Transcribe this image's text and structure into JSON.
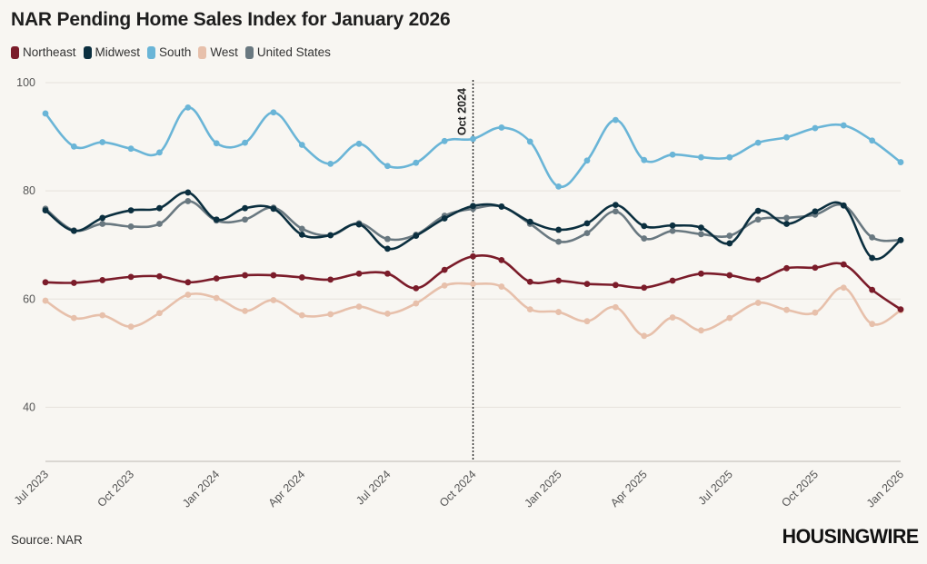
{
  "title": "NAR Pending Home Sales Index for January 2026",
  "source": "Source: NAR",
  "brand": "HOUSINGWIRE",
  "annotation_label": "Oct 2024",
  "chart_data": {
    "type": "line",
    "title": "NAR Pending Home Sales Index for January 2026",
    "xlabel": "",
    "ylabel": "",
    "ylim": [
      30,
      100
    ],
    "yticks": [
      40,
      60,
      80,
      100
    ],
    "grid": true,
    "legend": "top-left",
    "x": [
      "Jul 2023",
      "Aug 2023",
      "Sep 2023",
      "Oct 2023",
      "Nov 2023",
      "Dec 2023",
      "Jan 2024",
      "Feb 2024",
      "Mar 2024",
      "Apr 2024",
      "May 2024",
      "Jun 2024",
      "Jul 2024",
      "Aug 2024",
      "Sep 2024",
      "Oct 2024",
      "Nov 2024",
      "Dec 2024",
      "Jan 2025",
      "Feb 2025",
      "Mar 2025",
      "Apr 2025",
      "May 2025",
      "Jun 2025",
      "Jul 2025",
      "Aug 2025",
      "Sep 2025",
      "Oct 2025",
      "Nov 2025",
      "Dec 2025",
      "Jan 2026"
    ],
    "xtick_labels": [
      "Jul 2023",
      "Oct 2023",
      "Jan 2024",
      "Apr 2024",
      "Jul 2024",
      "Oct 2024",
      "Jan 2025",
      "Apr 2025",
      "Jul 2025",
      "Oct 2025",
      "Jan 2026"
    ],
    "vline": "Oct 2024",
    "series": [
      {
        "name": "Northeast",
        "color": "#7b1c2a",
        "values": [
          63.1,
          63.0,
          63.5,
          64.1,
          64.2,
          63.1,
          63.8,
          64.4,
          64.4,
          64.0,
          63.6,
          64.7,
          64.7,
          62.0,
          65.4,
          67.9,
          67.2,
          63.2,
          63.4,
          62.8,
          62.6,
          62.1,
          63.4,
          64.7,
          64.4,
          63.6,
          65.7,
          65.8,
          66.4,
          61.7,
          58.1
        ]
      },
      {
        "name": "Midwest",
        "color": "#0b2f3f",
        "values": [
          76.4,
          72.6,
          75.0,
          76.4,
          76.8,
          79.7,
          74.7,
          76.8,
          76.7,
          71.9,
          71.8,
          73.8,
          69.3,
          71.7,
          74.9,
          77.2,
          77.1,
          74.3,
          72.8,
          74.0,
          77.4,
          73.5,
          73.6,
          73.2,
          70.3,
          76.3,
          73.9,
          76.2,
          77.3,
          67.6,
          70.9
        ]
      },
      {
        "name": "South",
        "color": "#6ab5d7",
        "values": [
          94.3,
          88.2,
          89.0,
          87.8,
          87.1,
          95.4,
          88.8,
          88.9,
          94.5,
          88.5,
          85.0,
          88.7,
          84.6,
          85.2,
          89.2,
          89.6,
          91.7,
          89.1,
          80.8,
          85.6,
          93.1,
          85.7,
          86.7,
          86.2,
          86.2,
          88.9,
          89.9,
          91.6,
          92.1,
          89.3,
          85.3
        ]
      },
      {
        "name": "West",
        "color": "#e7c0ab",
        "values": [
          59.7,
          56.5,
          57.0,
          54.9,
          57.4,
          60.8,
          60.2,
          57.8,
          59.8,
          57.0,
          57.2,
          58.6,
          57.3,
          59.2,
          62.5,
          62.8,
          62.3,
          58.1,
          57.6,
          55.9,
          58.5,
          53.2,
          56.6,
          54.2,
          56.5,
          59.3,
          58.0,
          57.5,
          62.1,
          55.4,
          57.9
        ]
      },
      {
        "name": "United States",
        "color": "#697880",
        "values": [
          76.7,
          72.7,
          73.9,
          73.4,
          73.9,
          78.1,
          74.5,
          74.7,
          76.9,
          73.0,
          71.8,
          74.0,
          71.1,
          71.9,
          75.4,
          76.7,
          77.1,
          73.9,
          70.6,
          72.2,
          76.2,
          71.2,
          72.6,
          72.0,
          71.7,
          74.7,
          75.0,
          75.6,
          77.3,
          71.4,
          70.9
        ]
      }
    ]
  }
}
